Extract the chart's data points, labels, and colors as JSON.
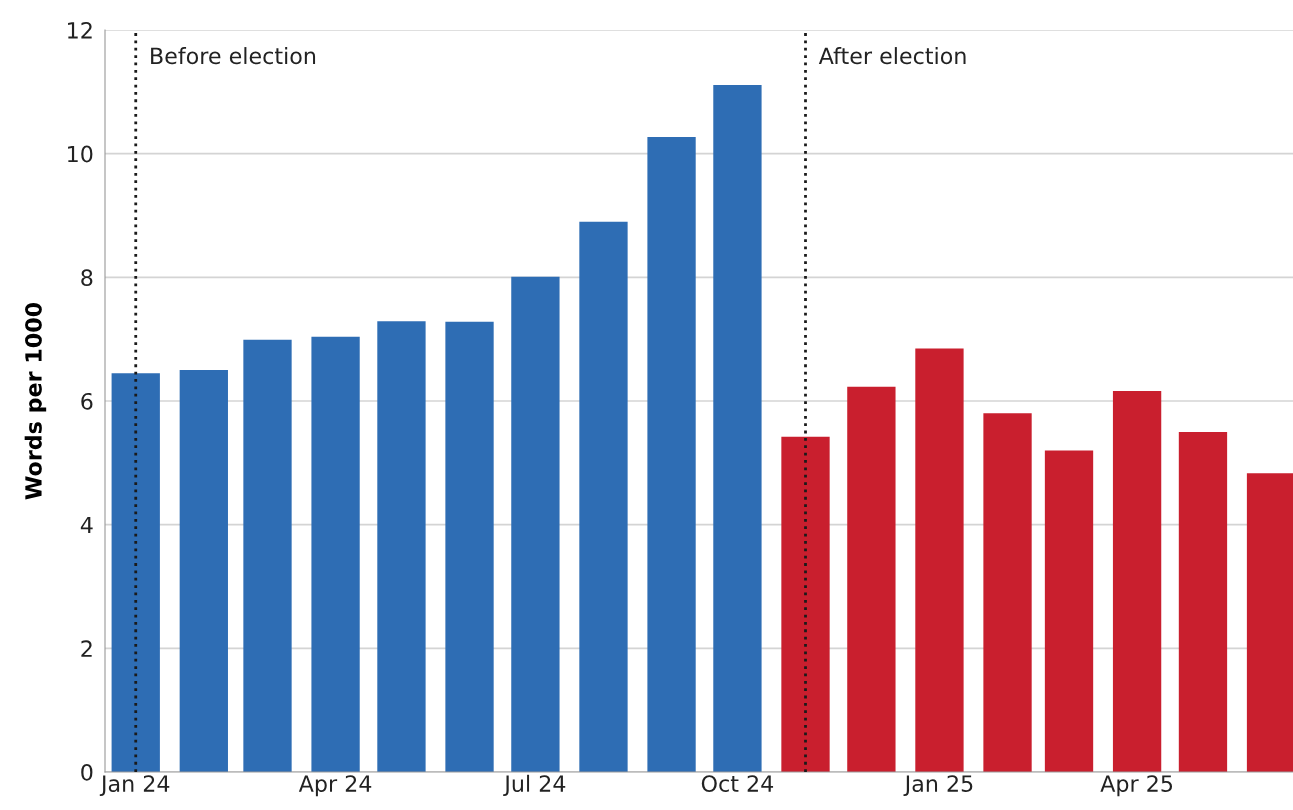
{
  "chart_data": {
    "type": "bar",
    "ylabel": "Words per 1000",
    "x": [
      "2024-01",
      "2024-02",
      "2024-03",
      "2024-04",
      "2024-05",
      "2024-06",
      "2024-07",
      "2024-08",
      "2024-09",
      "2024-10",
      "2024-11",
      "2024-12",
      "2025-01",
      "2025-02",
      "2025-03",
      "2025-04",
      "2025-05",
      "2025-06"
    ],
    "values": [
      6.45,
      6.5,
      6.99,
      7.04,
      7.29,
      7.28,
      8.01,
      8.9,
      10.27,
      11.11,
      5.42,
      6.23,
      6.85,
      5.8,
      5.2,
      6.16,
      5.5,
      4.83
    ],
    "colors": [
      "#2e6db4",
      "#2e6db4",
      "#2e6db4",
      "#2e6db4",
      "#2e6db4",
      "#2e6db4",
      "#2e6db4",
      "#2e6db4",
      "#2e6db4",
      "#2e6db4",
      "#c91f2e",
      "#c91f2e",
      "#c91f2e",
      "#c91f2e",
      "#c91f2e",
      "#c91f2e",
      "#c91f2e",
      "#c91f2e"
    ],
    "xlim": [
      "2023-12-18",
      "2025-06-11"
    ],
    "xticks": [
      {
        "value": "2024-01",
        "label": "Jan 24"
      },
      {
        "value": "2024-04",
        "label": "Apr 24"
      },
      {
        "value": "2024-07",
        "label": "Jul 24"
      },
      {
        "value": "2024-10",
        "label": "Oct 24"
      },
      {
        "value": "2025-01",
        "label": "Jan 25"
      },
      {
        "value": "2025-04",
        "label": "Apr 25"
      }
    ],
    "ylim": [
      0,
      12
    ],
    "yticks": [
      0,
      2,
      4,
      6,
      8,
      10,
      12
    ],
    "grid": "y",
    "ref_lines": [
      {
        "axis": "x",
        "value": "2024-01",
        "label": "Before election",
        "color": "#1a1a1a",
        "line_style": "dotted"
      },
      {
        "axis": "x",
        "value": "2024-11",
        "label": "After election",
        "color": "#1a1a1a",
        "line_style": "dotted"
      }
    ]
  }
}
